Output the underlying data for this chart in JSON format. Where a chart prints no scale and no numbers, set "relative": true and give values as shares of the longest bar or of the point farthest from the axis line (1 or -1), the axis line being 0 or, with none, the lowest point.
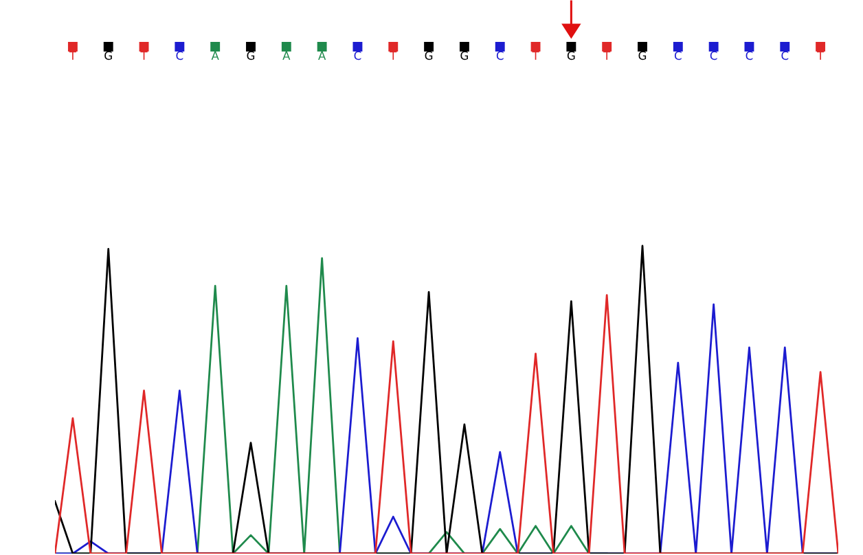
{
  "chart_data": {
    "type": "line",
    "relative": true,
    "legend": false,
    "marker": "none",
    "line_style": "solid",
    "categories": [
      null,
      "T",
      null,
      "G",
      null,
      "T",
      null,
      "C",
      null,
      "A",
      null,
      "G",
      null,
      "A",
      null,
      "A",
      null,
      "C",
      null,
      "T",
      null,
      "G",
      null,
      "G",
      null,
      "C",
      null,
      "T",
      null,
      "G",
      null,
      "T",
      null,
      "G",
      null,
      "C",
      null,
      "C",
      null,
      "C",
      null,
      "C",
      null,
      "T",
      null
    ],
    "series": [
      {
        "color": "#1f8a4c",
        "values": [
          0,
          0,
          0,
          0,
          0,
          0,
          0,
          0,
          0,
          0.87,
          0,
          0.06,
          0,
          0.87,
          0,
          0.96,
          0,
          0,
          0,
          0,
          0,
          0,
          0.07,
          0,
          0,
          0.08,
          0,
          0.09,
          0,
          0.09,
          0,
          0,
          null,
          null,
          null,
          null,
          null,
          null,
          null,
          null,
          null,
          null,
          null,
          null,
          null
        ]
      },
      {
        "color": "#1c1cd0",
        "values": [
          0,
          0,
          0.04,
          0,
          0,
          0,
          0,
          0.53,
          0,
          0,
          0,
          0,
          0,
          0,
          0,
          0,
          0,
          0.7,
          0,
          0.12,
          0,
          0,
          0,
          0,
          0,
          0.33,
          0,
          0,
          0,
          0,
          0,
          0,
          0,
          0,
          0,
          0.62,
          0,
          0.81,
          0,
          0.67,
          0,
          0.67,
          0,
          0,
          0
        ]
      },
      {
        "color": "#000000",
        "values": [
          0.17,
          0,
          0,
          0.99,
          0,
          0,
          0,
          0,
          0,
          0,
          0,
          0.36,
          0,
          0,
          0,
          0,
          0,
          0,
          0,
          0,
          0,
          0.85,
          0,
          0.42,
          0,
          0,
          0,
          0,
          0,
          0.82,
          0,
          0,
          0,
          1,
          0,
          0,
          0,
          0,
          0,
          0,
          0,
          0,
          0,
          0,
          0
        ]
      },
      {
        "color": "#e02828",
        "values": [
          0,
          0.44,
          0,
          0,
          0,
          0.53,
          0,
          0,
          0,
          0,
          0,
          0,
          0,
          0,
          0,
          0,
          0,
          0,
          0,
          0.69,
          0,
          0,
          0,
          0,
          0,
          0,
          0,
          0.65,
          0,
          0,
          0,
          0.84,
          0,
          0,
          0,
          0,
          0,
          0,
          0,
          0,
          0,
          0,
          0,
          0.59,
          0
        ]
      }
    ]
  }
}
